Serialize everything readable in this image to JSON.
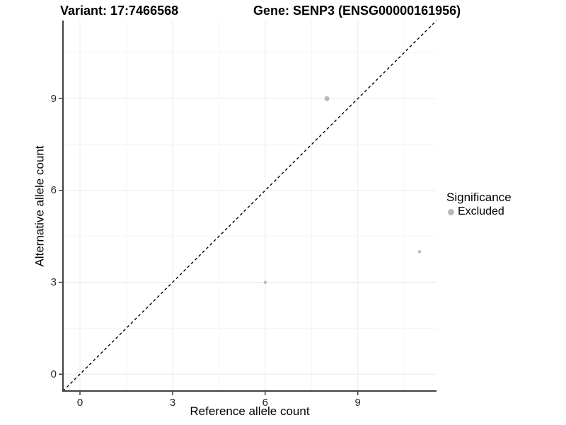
{
  "chart_data": {
    "type": "scatter",
    "title_left": "Variant: 17:7466568",
    "title_right": "Gene: SENP3 (ENSG00000161956)",
    "xlabel": "Reference allele count",
    "ylabel": "Alternative allele count",
    "xlim": [
      -0.55,
      11.55
    ],
    "ylim": [
      -0.55,
      11.55
    ],
    "x_ticks": [
      0,
      3,
      6,
      9
    ],
    "y_ticks": [
      0,
      3,
      6,
      9
    ],
    "x_minor_ticks": [
      1.5,
      4.5,
      7.5,
      10.5
    ],
    "y_minor_ticks": [
      1.5,
      4.5,
      7.5,
      10.5
    ],
    "grid": "major+minor",
    "series": [
      {
        "name": "Excluded",
        "color": "#b9b9b9",
        "points": [
          {
            "x": 8,
            "y": 9,
            "radius_px": 3.5
          },
          {
            "x": 6,
            "y": 3,
            "radius_px": 2.2
          },
          {
            "x": 11,
            "y": 4,
            "radius_px": 2.2
          }
        ]
      }
    ],
    "reference_line": {
      "equation": "y = x",
      "style": "dashed",
      "color": "#000000"
    },
    "legend": {
      "title": "Significance",
      "position": "right",
      "entries": [
        {
          "label": "Excluded",
          "color": "#b9b9b9"
        }
      ]
    },
    "colors": {
      "background": "#ffffff",
      "axis_line": "#404040",
      "grid_major": "#ebebeb",
      "grid_minor": "#f4f4f4",
      "tick_mark": "#404040",
      "tick_label": "#262626"
    }
  }
}
